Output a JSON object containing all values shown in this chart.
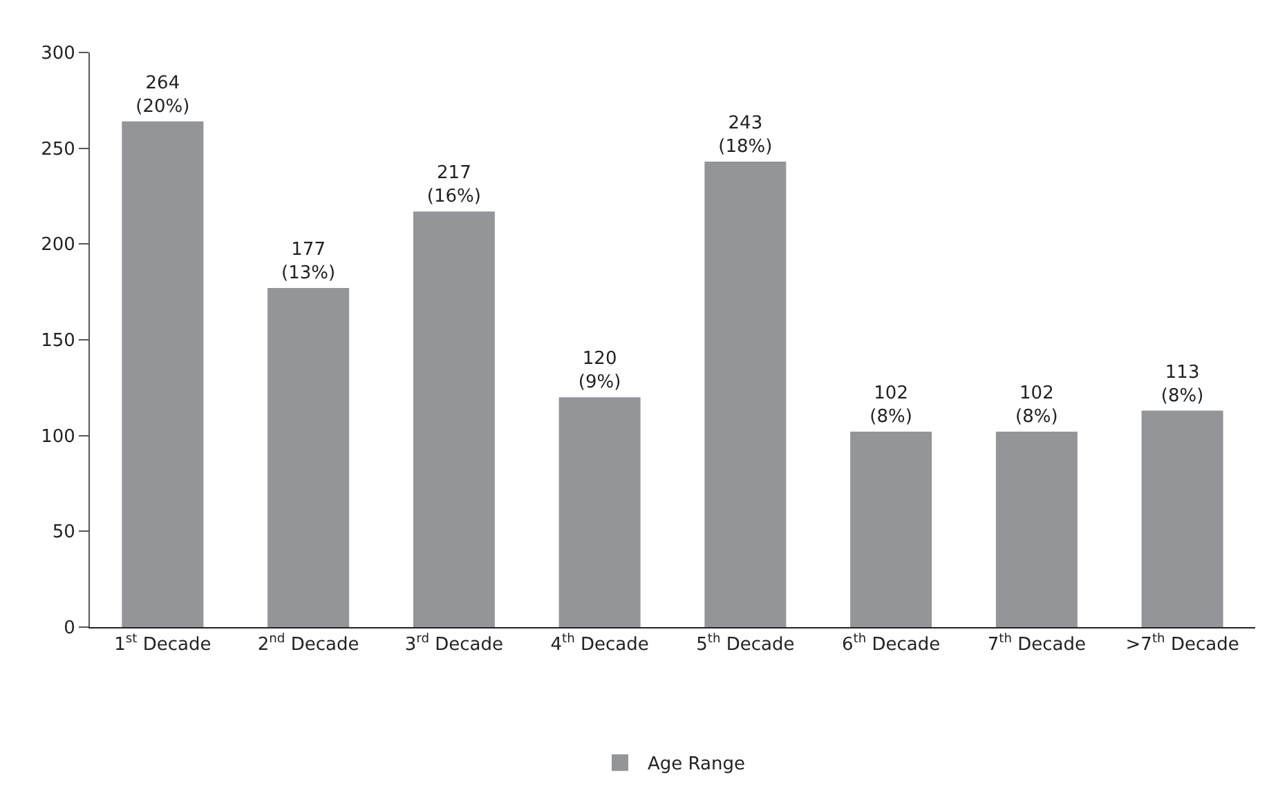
{
  "chart_data": {
    "type": "bar",
    "categories": [
      "1$^{st}$ Decade",
      "2$^{nd}$ Decade",
      "3$^{rd}$ Decade",
      "4$^{th}$ Decade",
      "5$^{th}$ Decade",
      "6$^{th}$ Decade",
      "7$^{th}$ Decade",
      ">7$^{th}$ Decade"
    ],
    "series": [
      {
        "name": "Age Range",
        "color": "#939598",
        "values": [
          264,
          177,
          217,
          120,
          243,
          102,
          102,
          113
        ],
        "value_labels": [
          "264\n(20%)",
          "177\n(13%)",
          "217\n(16%)",
          "120\n(9%)",
          "243\n(18%)",
          "102\n(8%)",
          "102\n(8%)",
          "113\n(8%)"
        ]
      }
    ],
    "ylim": [
      0,
      300
    ],
    "yticks": [
      0,
      50,
      100,
      150,
      200,
      250,
      300
    ],
    "legend": "bottom"
  }
}
